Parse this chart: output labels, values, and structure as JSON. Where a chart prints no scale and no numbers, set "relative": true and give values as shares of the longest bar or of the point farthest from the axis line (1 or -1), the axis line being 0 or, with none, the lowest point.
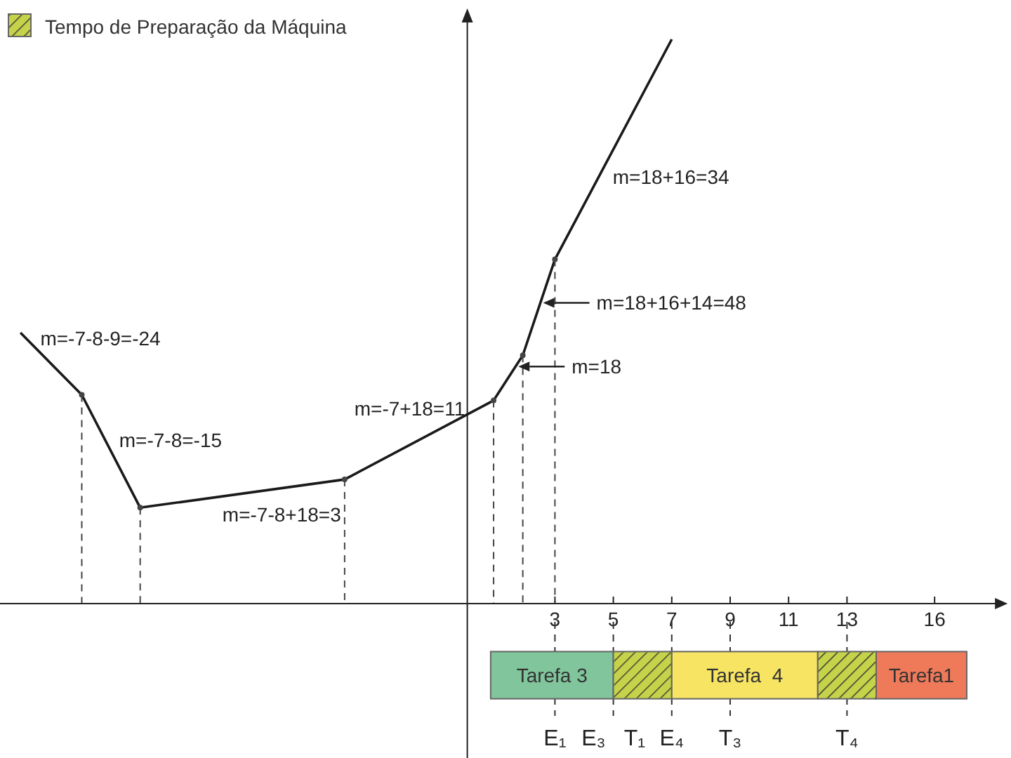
{
  "chart_data": [
    {
      "type": "line",
      "relative": true,
      "xlim": [
        -16,
        18.5
      ],
      "xticks": [
        3,
        5,
        7,
        9,
        11,
        13,
        16
      ],
      "tick_labels": "x",
      "marker": "none",
      "line_style": "solid",
      "series": [
        {
          "color": "#1a1a1a",
          "x": [
            -15.3,
            -13.2,
            -11.2,
            -4.2,
            0.9,
            1.9,
            3,
            7
          ],
          "values": [
            0.48,
            0.37,
            0.17,
            0.22,
            0.36,
            0.44,
            0.61,
            1
          ]
        },
        {
          "type": "lollipop",
          "color": "#444444",
          "line_style": "dashed",
          "marker": "circle",
          "x": [
            -13.2,
            -11.2,
            -4.2,
            0.9,
            1.9,
            3
          ],
          "values": [
            0.37,
            0.17,
            0.22,
            0.36,
            0.44,
            0.61
          ]
        }
      ],
      "annotations": [
        {
          "text": "m=-7-8-9=-24",
          "x": -15.1,
          "y": 0.47
        },
        {
          "text": "m=-7-8=-15",
          "x": -12.4,
          "y": 0.29
        },
        {
          "text": "m=-7-8+18=3",
          "x": -7.7,
          "y": 0.195
        },
        {
          "text": "m=-7+18=11",
          "x": 0.4,
          "y": 0.346
        },
        {
          "text": "m=18",
          "x": 1.65,
          "y": 0.42
        },
        {
          "text": "m=18+16+14=48",
          "x": 2.5,
          "y": 0.533
        },
        {
          "text": "m=18+16=34",
          "x": 4.5,
          "y": 0.756
        }
      ]
    },
    {
      "type": "bar",
      "orientation": "horizontal",
      "categories": [
        null
      ],
      "xlim": [
        -16,
        18.5
      ],
      "tick_labels": false,
      "legend": "top left",
      "series": [
        {
          "color": "#80c59c",
          "base": [
            0.8
          ],
          "values": [
            4.2
          ]
        },
        {
          "name": "Tempo de Preparação da Máquina",
          "color": "#c5d34a",
          "base": [
            5
          ],
          "values": [
            2
          ]
        },
        {
          "color": "#f7e463",
          "base": [
            7
          ],
          "values": [
            5
          ]
        },
        {
          "color": "#c5d34a",
          "base": [
            12
          ],
          "values": [
            2
          ]
        },
        {
          "color": "#ef7a5a",
          "base": [
            14
          ],
          "values": [
            3.1
          ]
        }
      ],
      "annotations": [
        "Tarefa 3",
        "Tarefa  4",
        "Tarefa1"
      ],
      "ref_lines": [
        {
          "axis": "x",
          "value": 3,
          "label": "E₁",
          "line_style": "dashed"
        },
        {
          "axis": "x",
          "value": 5,
          "label": "E₃   T₁",
          "line_style": "dashed"
        },
        {
          "axis": "x",
          "value": 7,
          "label": "E₄",
          "line_style": "dashed"
        },
        {
          "axis": "x",
          "value": 9,
          "label": "T₃",
          "line_style": "dashed"
        },
        {
          "axis": "x",
          "value": 13,
          "label": "T₄",
          "line_style": "dashed"
        }
      ]
    }
  ]
}
